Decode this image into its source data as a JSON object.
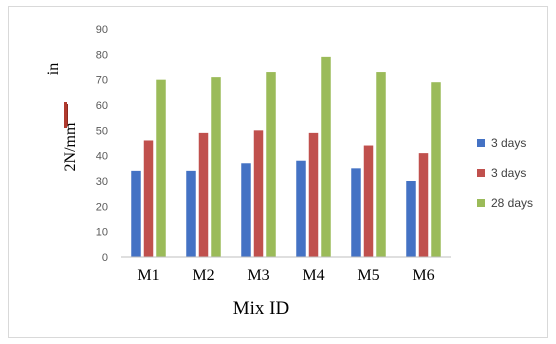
{
  "chart_data": {
    "type": "bar",
    "xlabel": "Mix ID",
    "ylabel_parts": [
      "in",
      "2N/mm"
    ],
    "categories": [
      "M1",
      "M2",
      "M3",
      "M4",
      "M5",
      "M6"
    ],
    "ylim": [
      0,
      90
    ],
    "yticks": [
      0,
      10,
      20,
      30,
      40,
      50,
      60,
      70,
      80,
      90
    ],
    "grid": false,
    "legend_position": "right",
    "series": [
      {
        "name": "3 days",
        "color": "#4472c4",
        "values": [
          34,
          34,
          37,
          38,
          35,
          30
        ]
      },
      {
        "name": "3 days",
        "color": "#c0504d",
        "values": [
          46,
          49,
          50,
          49,
          44,
          41
        ]
      },
      {
        "name": "28 days",
        "color": "#9bbb59",
        "values": [
          70,
          71,
          73,
          79,
          73,
          69
        ]
      }
    ]
  }
}
